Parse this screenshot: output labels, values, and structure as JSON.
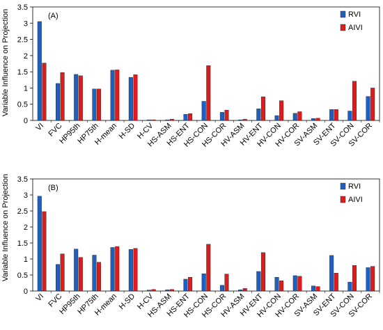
{
  "figure": {
    "ylabel": "Variable Influence on Projection",
    "colors": {
      "RVI": "#1f5fbf",
      "AIVI": "#e01b1b"
    }
  },
  "chart_data": [
    {
      "type": "bar",
      "panel_label": "(A)",
      "ylabel": "Variable Influence on Projection",
      "ylim": [
        0,
        3.5
      ],
      "yticks": [
        "0",
        "0.5",
        "1",
        "1.5",
        "2",
        "2.5",
        "3",
        "3.5"
      ],
      "legend_position": "top-right",
      "grid": false,
      "categories": [
        "VI",
        "FVC",
        "HP95th",
        "HP75th",
        "H-mean",
        "H-SD",
        "H-CV",
        "HS-ASM",
        "HS-ENT",
        "HS-CON",
        "HS-COR",
        "HV-ASM",
        "HV-ENT",
        "HV-CON",
        "HV-COR",
        "SV-ASM",
        "SV-ENT",
        "SV-CON",
        "SV-COR"
      ],
      "series": [
        {
          "name": "RVI",
          "color": "#1f5fbf",
          "values": [
            3.05,
            1.14,
            1.42,
            0.97,
            1.55,
            1.33,
            0.02,
            0.02,
            0.19,
            0.59,
            0.25,
            0.02,
            0.36,
            0.15,
            0.22,
            0.06,
            0.34,
            0.29,
            0.74
          ]
        },
        {
          "name": "AIVI",
          "color": "#e01b1b",
          "values": [
            1.77,
            1.48,
            1.38,
            0.97,
            1.56,
            1.41,
            0.02,
            0.04,
            0.21,
            1.69,
            0.32,
            0.04,
            0.73,
            0.61,
            0.27,
            0.07,
            0.34,
            1.21,
            1.0
          ]
        }
      ]
    },
    {
      "type": "bar",
      "panel_label": "(B)",
      "ylabel": "Variable Influence on Projection",
      "ylim": [
        0,
        3.5
      ],
      "yticks": [
        "0",
        "0.5",
        "1",
        "1.5",
        "2",
        "2.5",
        "3",
        "3.5"
      ],
      "legend_position": "top-right",
      "grid": false,
      "categories": [
        "VI",
        "FVC",
        "HP95th",
        "HP75th",
        "H-mean",
        "H-SD",
        "H-CV",
        "HS-ASM",
        "HS-ENT",
        "HS-CON",
        "HS-COR",
        "HV-ASM",
        "HV-ENT",
        "HV-CON",
        "HV-COR",
        "SV-ASM",
        "SV-ENT",
        "SV-CON",
        "SV-COR"
      ],
      "series": [
        {
          "name": "RVI",
          "color": "#1f5fbf",
          "values": [
            2.96,
            0.83,
            1.31,
            1.12,
            1.36,
            1.3,
            0.03,
            0.04,
            0.37,
            0.54,
            0.18,
            0.04,
            0.61,
            0.43,
            0.48,
            0.16,
            1.11,
            0.28,
            0.73
          ]
        },
        {
          "name": "AIVI",
          "color": "#e01b1b",
          "values": [
            2.48,
            1.16,
            1.05,
            0.9,
            1.39,
            1.33,
            0.05,
            0.05,
            0.43,
            1.46,
            0.53,
            0.08,
            1.2,
            0.32,
            0.46,
            0.14,
            0.56,
            0.8,
            0.77
          ]
        }
      ]
    }
  ]
}
